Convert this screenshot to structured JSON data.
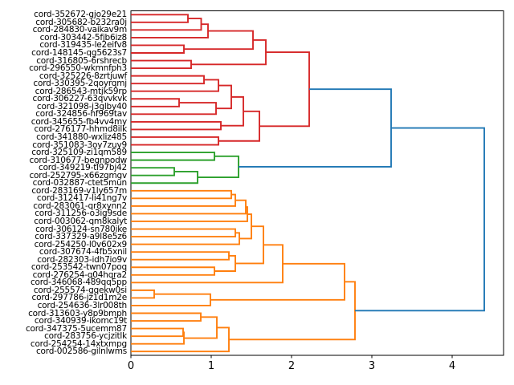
{
  "chart_data": {
    "type": "dendrogram",
    "title": "",
    "xlabel": "",
    "ylabel": "",
    "orientation": "leaves-left-root-right",
    "grid": false,
    "legend": null,
    "x_axis": {
      "ticks": [
        "0",
        "1",
        "2",
        "3",
        "4"
      ],
      "tick_values": [
        0,
        1,
        2,
        3,
        4
      ],
      "range": [
        0,
        4.64
      ]
    },
    "colors": {
      "red": "#d62728",
      "green": "#2ca02c",
      "orange": "#ff7f0e",
      "blue": "#1f77b4",
      "axis": "#000000",
      "label_text": "#000000",
      "background": "#ffffff"
    },
    "leaves": [
      "cord-352672-gjo29e21",
      "cord-305682-b232ra0j",
      "cord-284830-vaikav9m",
      "cord-303442-5fjb6iz8",
      "cord-319435-le2eifv8",
      "cord-148145-qg5623s7",
      "cord-316805-6rshrecb",
      "cord-296550-wkmnfph3",
      "cord-325226-8zrtjuwf",
      "cord-330395-2qoyrqmj",
      "cord-286543-mtjk59rp",
      "cord-306227-63qvvkvk",
      "cord-321098-j3glby40",
      "cord-324856-hf969tav",
      "cord-345655-fb4vv4my",
      "cord-276177-hhmd8ilk",
      "cord-341880-wxliz485",
      "cord-351083-3oy7zuy9",
      "cord-325109-zi1qm589",
      "cord-310677-begnpodw",
      "cord-349219-tl97bj42",
      "cord-252795-x66zgmgv",
      "cord-032887-ctet5mun",
      "cord-283169-v1ly657m",
      "cord-312417-li41ng7v",
      "cord-283061-qr8xynn2",
      "cord-311256-o3ig9sde",
      "cord-003062-qm8kalyt",
      "cord-306124-sn780ike",
      "cord-337329-a9l8e5z6",
      "cord-254250-l0v602x9",
      "cord-307674-4fb5xnil",
      "cord-282303-idh7io9v",
      "cord-253542-twn07poq",
      "cord-276254-q04hqra2",
      "cord-346068-489qq5pp",
      "cord-255574-gqekw0si",
      "cord-297786-jz1d1m2e",
      "cord-254636-3lr008th",
      "cord-313603-y8p9bmph",
      "cord-340939-ikomc19t",
      "cord-347375-5ucemm87",
      "cord-283756-ycjzitlk",
      "cord-254254-14xtxmpg",
      "cord-002586-gilnlwms"
    ],
    "merges": [
      {
        "id": "m0",
        "a": 0,
        "b": 1,
        "d": 0.71,
        "color": "red"
      },
      {
        "id": "m1",
        "a": "m0",
        "b": 2,
        "d": 0.875,
        "color": "red"
      },
      {
        "id": "m2",
        "a": "m1",
        "b": 3,
        "d": 0.96,
        "color": "red"
      },
      {
        "id": "m3",
        "a": 4,
        "b": 5,
        "d": 0.66,
        "color": "red"
      },
      {
        "id": "m4",
        "a": "m2",
        "b": "m3",
        "d": 1.52,
        "color": "red"
      },
      {
        "id": "m5",
        "a": 6,
        "b": 7,
        "d": 0.75,
        "color": "red"
      },
      {
        "id": "m6",
        "a": "m4",
        "b": "m5",
        "d": 1.68,
        "color": "red"
      },
      {
        "id": "m7",
        "a": 8,
        "b": 9,
        "d": 0.91,
        "color": "red"
      },
      {
        "id": "m8",
        "a": "m7",
        "b": 10,
        "d": 1.09,
        "color": "red"
      },
      {
        "id": "m9",
        "a": 11,
        "b": 12,
        "d": 0.6,
        "color": "red"
      },
      {
        "id": "m10",
        "a": "m9",
        "b": 13,
        "d": 1.06,
        "color": "red"
      },
      {
        "id": "m11",
        "a": "m8",
        "b": "m10",
        "d": 1.25,
        "color": "red"
      },
      {
        "id": "m12",
        "a": 14,
        "b": 15,
        "d": 1.12,
        "color": "red"
      },
      {
        "id": "m13",
        "a": "m11",
        "b": "m12",
        "d": 1.4,
        "color": "red"
      },
      {
        "id": "m14",
        "a": 16,
        "b": 17,
        "d": 1.09,
        "color": "red"
      },
      {
        "id": "m15",
        "a": "m13",
        "b": "m14",
        "d": 1.6,
        "color": "red"
      },
      {
        "id": "m16",
        "a": "m6",
        "b": "m15",
        "d": 2.22,
        "color": "red"
      },
      {
        "id": "m17",
        "a": 18,
        "b": 19,
        "d": 1.04,
        "color": "green"
      },
      {
        "id": "m18",
        "a": 20,
        "b": 21,
        "d": 0.54,
        "color": "green"
      },
      {
        "id": "m19",
        "a": "m18",
        "b": 22,
        "d": 0.83,
        "color": "green"
      },
      {
        "id": "m20",
        "a": "m17",
        "b": "m19",
        "d": 1.34,
        "color": "green"
      },
      {
        "id": "m21",
        "a": "m16",
        "b": "m20",
        "d": 3.24,
        "color": "blue"
      },
      {
        "id": "m22",
        "a": 23,
        "b": 24,
        "d": 1.25,
        "color": "orange"
      },
      {
        "id": "m23",
        "a": "m22",
        "b": 25,
        "d": 1.3,
        "color": "orange"
      },
      {
        "id": "m24",
        "a": "m23",
        "b": 26,
        "d": 1.43,
        "color": "orange"
      },
      {
        "id": "m25",
        "a": "m24",
        "b": 27,
        "d": 1.45,
        "color": "orange"
      },
      {
        "id": "m26",
        "a": 28,
        "b": 29,
        "d": 1.3,
        "color": "orange"
      },
      {
        "id": "m27",
        "a": "m26",
        "b": 30,
        "d": 1.35,
        "color": "orange"
      },
      {
        "id": "m28",
        "a": "m25",
        "b": "m27",
        "d": 1.5,
        "color": "orange"
      },
      {
        "id": "m29",
        "a": 31,
        "b": 32,
        "d": 1.22,
        "color": "orange"
      },
      {
        "id": "m30",
        "a": 33,
        "b": 34,
        "d": 1.04,
        "color": "orange"
      },
      {
        "id": "m31",
        "a": "m29",
        "b": "m30",
        "d": 1.3,
        "color": "orange"
      },
      {
        "id": "m32",
        "a": "m28",
        "b": "m31",
        "d": 1.65,
        "color": "orange"
      },
      {
        "id": "m33",
        "a": "m32",
        "b": 35,
        "d": 1.89,
        "color": "orange"
      },
      {
        "id": "m34",
        "a": 36,
        "b": 37,
        "d": 0.29,
        "color": "orange"
      },
      {
        "id": "m35",
        "a": "m34",
        "b": 38,
        "d": 0.99,
        "color": "orange"
      },
      {
        "id": "m36",
        "a": "m33",
        "b": "m35",
        "d": 2.66,
        "color": "orange"
      },
      {
        "id": "m37",
        "a": 39,
        "b": 40,
        "d": 0.87,
        "color": "orange"
      },
      {
        "id": "m38",
        "a": 41,
        "b": 42,
        "d": 0.65,
        "color": "orange"
      },
      {
        "id": "m39",
        "a": "m38",
        "b": 43,
        "d": 0.66,
        "color": "orange"
      },
      {
        "id": "m40",
        "a": "m37",
        "b": "m39",
        "d": 1.07,
        "color": "orange"
      },
      {
        "id": "m41",
        "a": "m40",
        "b": 44,
        "d": 1.22,
        "color": "orange"
      },
      {
        "id": "m42",
        "a": "m36",
        "b": "m41",
        "d": 2.79,
        "color": "orange"
      },
      {
        "id": "m43",
        "a": "m21",
        "b": "m42",
        "d": 4.4,
        "color": "blue"
      }
    ]
  }
}
